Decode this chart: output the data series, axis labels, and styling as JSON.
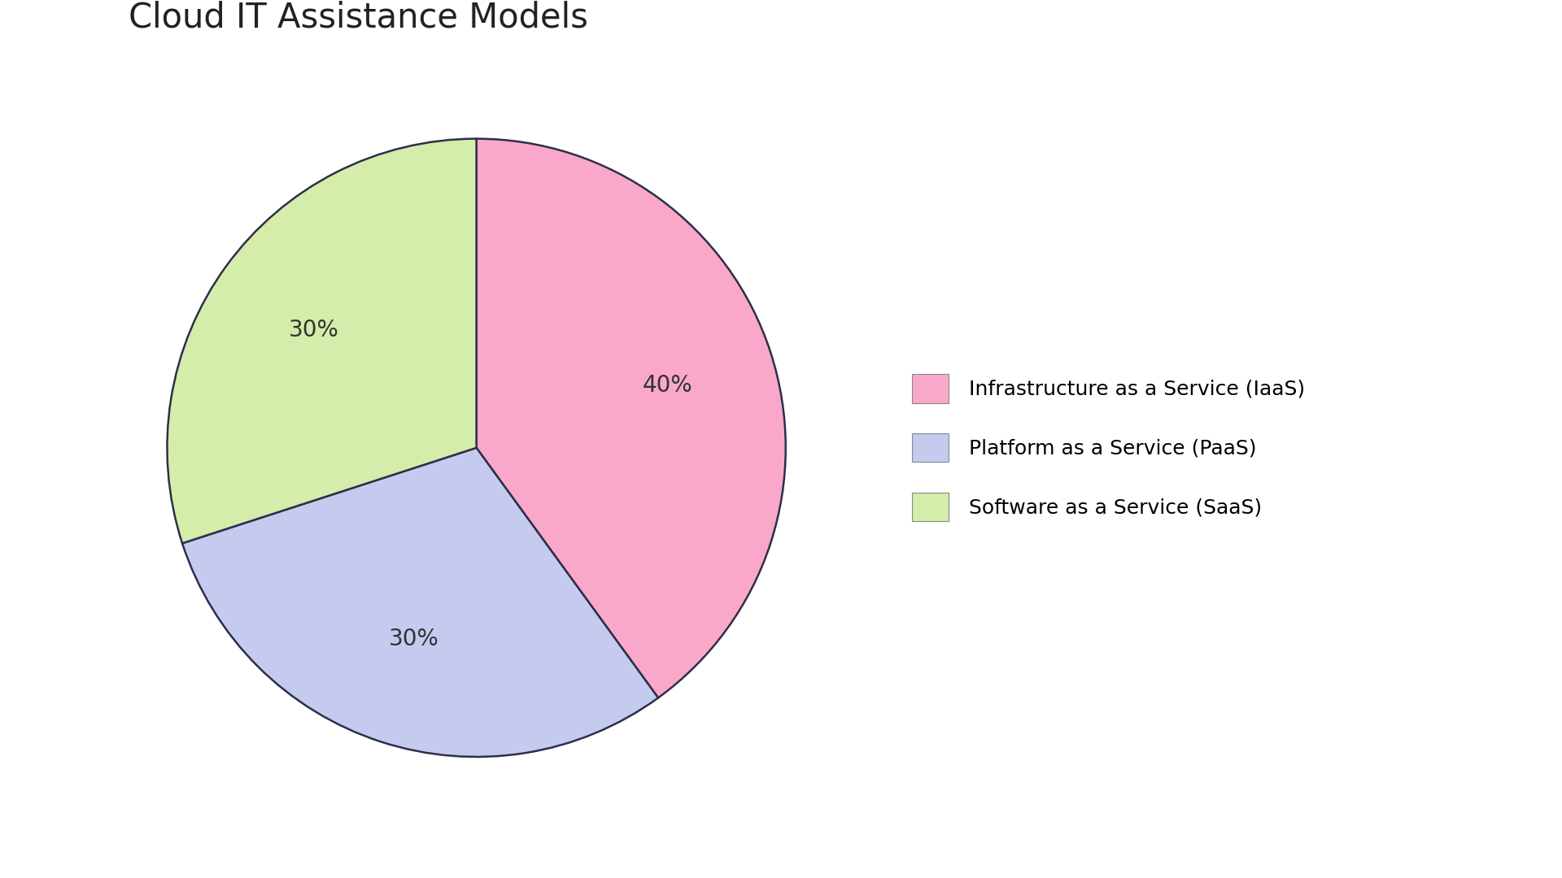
{
  "title": "Cloud IT Assistance Models",
  "slices": [
    40,
    30,
    30
  ],
  "labels": [
    "Infrastructure as a Service (IaaS)",
    "Platform as a Service (PaaS)",
    "Software as a Service (SaaS)"
  ],
  "colors": [
    "#F9A8C9",
    "#C5CAEF",
    "#D4EDAA"
  ],
  "edge_color": "#2E2E4A",
  "startangle": 90,
  "title_fontsize": 30,
  "autopct_fontsize": 20,
  "legend_fontsize": 18,
  "background_color": "#FFFFFF",
  "legend_patch_edge": "#888888"
}
